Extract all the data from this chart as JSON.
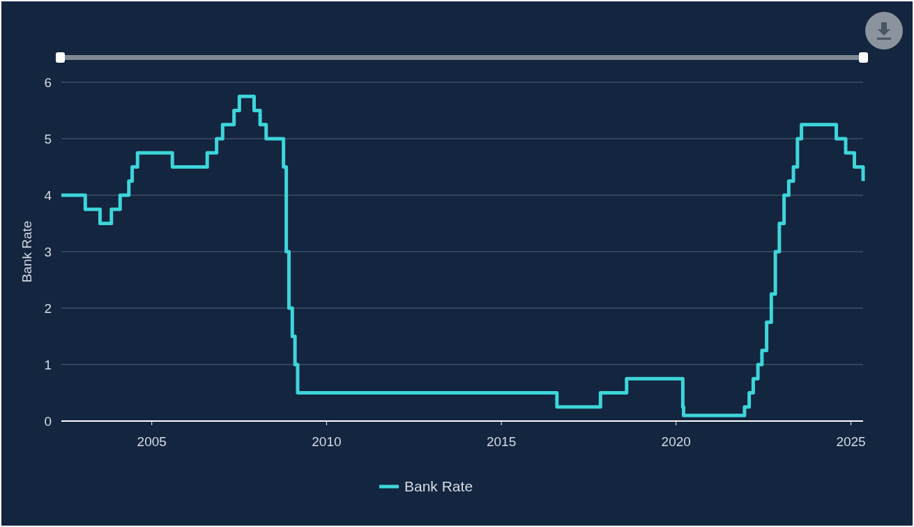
{
  "chart_data": {
    "type": "step",
    "ylabel": "Bank Rate",
    "x": [
      "2002-06-01",
      "2003-02-06",
      "2003-07-10",
      "2003-11-06",
      "2004-02-05",
      "2004-05-06",
      "2004-06-10",
      "2004-08-05",
      "2005-08-04",
      "2006-08-03",
      "2006-11-09",
      "2007-01-11",
      "2007-05-10",
      "2007-07-05",
      "2007-12-06",
      "2008-02-07",
      "2008-04-10",
      "2008-10-08",
      "2008-11-06",
      "2008-12-04",
      "2009-01-08",
      "2009-02-05",
      "2009-03-05",
      "2016-08-04",
      "2017-11-02",
      "2018-08-02",
      "2020-03-11",
      "2020-03-19",
      "2021-12-16",
      "2022-02-03",
      "2022-03-17",
      "2022-05-05",
      "2022-06-16",
      "2022-08-04",
      "2022-09-22",
      "2022-11-03",
      "2022-12-15",
      "2023-02-02",
      "2023-03-23",
      "2023-05-11",
      "2023-06-22",
      "2023-08-03",
      "2024-08-01",
      "2024-11-07",
      "2025-02-06",
      "2025-05-08"
    ],
    "series": [
      {
        "name": "Bank Rate",
        "color": "#3dd5da",
        "values": [
          4,
          3.75,
          3.5,
          3.75,
          4,
          4.25,
          4.5,
          4.75,
          4.5,
          4.75,
          5,
          5.25,
          5.5,
          5.75,
          5.5,
          5.25,
          5,
          4.5,
          3,
          2,
          1.5,
          1,
          0.5,
          0.25,
          0.5,
          0.75,
          0.25,
          0.1,
          0.25,
          0.5,
          0.75,
          1,
          1.25,
          1.75,
          2.25,
          3,
          3.5,
          4,
          4.25,
          4.5,
          5,
          5.25,
          5,
          4.75,
          4.5,
          4.25
        ]
      }
    ],
    "xlim": [
      "2002-06-01",
      "2025-05-08"
    ],
    "xticks": [
      "2005",
      "2010",
      "2015",
      "2020",
      "2025"
    ],
    "ylim": [
      0,
      6
    ],
    "yticks": [
      0,
      1,
      2,
      3,
      4,
      5,
      6
    ],
    "grid": "y",
    "legend": "bottom"
  }
}
